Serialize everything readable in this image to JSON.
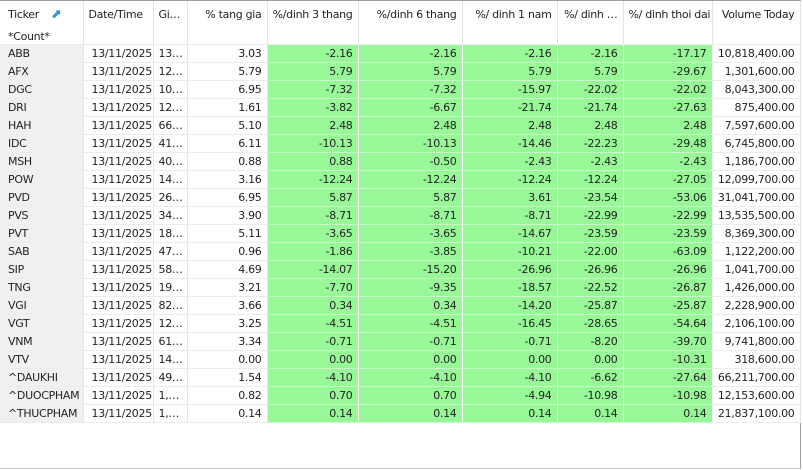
{
  "columns": [
    "Ticker",
    "Date/Time",
    "Gi…",
    "% tang gia",
    "%/dinh 3 thang",
    "%/dinh 6 thang",
    "%/ dinh 1 nam",
    "%/ dinh …",
    "%/ dinh thoi dai",
    "Volume Today"
  ],
  "sort_icon": "sort-arrow-icon",
  "count_label": "*Count*",
  "highlight_color": "#98f898",
  "rows": [
    [
      "ABB",
      "13/11/2025",
      "13…",
      "3.03",
      "-2.16",
      "-2.16",
      "-2.16",
      "-2.16",
      "-17.17",
      "10,818,400.00"
    ],
    [
      "AFX",
      "13/11/2025",
      "12…",
      "5.79",
      "5.79",
      "5.79",
      "5.79",
      "5.79",
      "-29.67",
      "1,301,600.00"
    ],
    [
      "DGC",
      "13/11/2025",
      "10…",
      "6.95",
      "-7.32",
      "-7.32",
      "-15.97",
      "-22.02",
      "-22.02",
      "8,043,300.00"
    ],
    [
      "DRI",
      "13/11/2025",
      "12…",
      "1.61",
      "-3.82",
      "-6.67",
      "-21.74",
      "-21.74",
      "-27.63",
      "875,400.00"
    ],
    [
      "HAH",
      "13/11/2025",
      "66…",
      "5.10",
      "2.48",
      "2.48",
      "2.48",
      "2.48",
      "2.48",
      "7,597,600.00"
    ],
    [
      "IDC",
      "13/11/2025",
      "41…",
      "6.11",
      "-10.13",
      "-10.13",
      "-14.46",
      "-22.23",
      "-29.48",
      "6,745,800.00"
    ],
    [
      "MSH",
      "13/11/2025",
      "40…",
      "0.88",
      "0.88",
      "-0.50",
      "-2.43",
      "-2.43",
      "-2.43",
      "1,186,700.00"
    ],
    [
      "POW",
      "13/11/2025",
      "14…",
      "3.16",
      "-12.24",
      "-12.24",
      "-12.24",
      "-12.24",
      "-27.05",
      "12,099,700.00"
    ],
    [
      "PVD",
      "13/11/2025",
      "26…",
      "6.95",
      "5.87",
      "5.87",
      "3.61",
      "-23.54",
      "-53.06",
      "31,041,700.00"
    ],
    [
      "PVS",
      "13/11/2025",
      "34…",
      "3.90",
      "-8.71",
      "-8.71",
      "-8.71",
      "-22.99",
      "-22.99",
      "13,535,500.00"
    ],
    [
      "PVT",
      "13/11/2025",
      "18…",
      "5.11",
      "-3.65",
      "-3.65",
      "-14.67",
      "-23.59",
      "-23.59",
      "8,369,300.00"
    ],
    [
      "SAB",
      "13/11/2025",
      "47…",
      "0.96",
      "-1.86",
      "-3.85",
      "-10.21",
      "-22.00",
      "-63.09",
      "1,122,200.00"
    ],
    [
      "SIP",
      "13/11/2025",
      "58…",
      "4.69",
      "-14.07",
      "-15.20",
      "-26.96",
      "-26.96",
      "-26.96",
      "1,041,700.00"
    ],
    [
      "TNG",
      "13/11/2025",
      "19…",
      "3.21",
      "-7.70",
      "-9.35",
      "-18.57",
      "-22.52",
      "-26.87",
      "1,426,000.00"
    ],
    [
      "VGI",
      "13/11/2025",
      "82…",
      "3.66",
      "0.34",
      "0.34",
      "-14.20",
      "-25.87",
      "-25.87",
      "2,228,900.00"
    ],
    [
      "VGT",
      "13/11/2025",
      "12…",
      "3.25",
      "-4.51",
      "-4.51",
      "-16.45",
      "-28.65",
      "-54.64",
      "2,106,100.00"
    ],
    [
      "VNM",
      "13/11/2025",
      "61…",
      "3.34",
      "-0.71",
      "-0.71",
      "-0.71",
      "-8.20",
      "-39.70",
      "9,741,800.00"
    ],
    [
      "VTV",
      "13/11/2025",
      "14…",
      "0.00",
      "0.00",
      "0.00",
      "0.00",
      "0.00",
      "-10.31",
      "318,600.00"
    ],
    [
      "^DAUKHI",
      "13/11/2025",
      "49…",
      "1.54",
      "-4.10",
      "-4.10",
      "-4.10",
      "-6.62",
      "-27.64",
      "66,211,700.00"
    ],
    [
      "^DUOCPHAM",
      "13/11/2025",
      "1,…",
      "0.82",
      "0.70",
      "0.70",
      "-4.94",
      "-10.98",
      "-10.98",
      "12,153,600.00"
    ],
    [
      "^THUCPHAM",
      "13/11/2025",
      "1,…",
      "0.14",
      "0.14",
      "0.14",
      "0.14",
      "0.14",
      "0.14",
      "21,837,100.00"
    ]
  ]
}
